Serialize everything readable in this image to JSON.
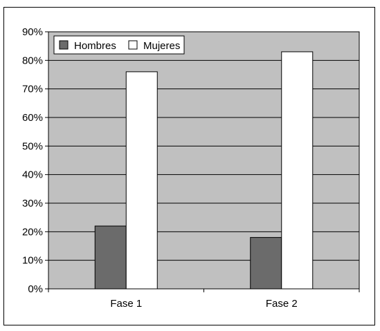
{
  "chart_data": {
    "type": "bar",
    "categories": [
      "Fase 1",
      "Fase 2"
    ],
    "series": [
      {
        "name": "Hombres",
        "values": [
          22,
          18
        ],
        "color": "#6b6b6b"
      },
      {
        "name": "Mujeres",
        "values": [
          76,
          83
        ],
        "color": "#ffffff"
      }
    ],
    "yticks": [
      "0%",
      "10%",
      "20%",
      "30%",
      "40%",
      "50%",
      "60%",
      "70%",
      "80%",
      "90%"
    ],
    "ylim": [
      0,
      90
    ],
    "unit": "%",
    "grid": true,
    "legend": "top-left",
    "plot_background": "#c0c0c0"
  }
}
